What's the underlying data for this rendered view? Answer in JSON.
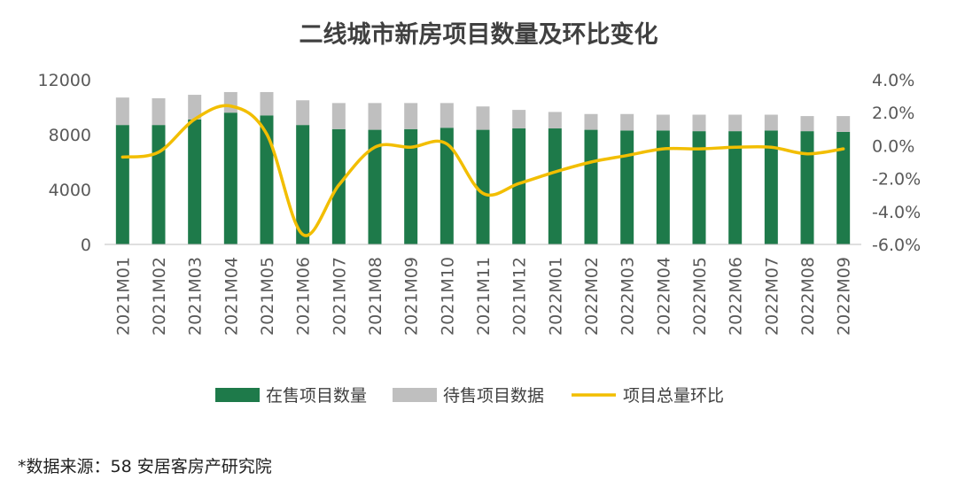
{
  "colors": {
    "on_sale": "#1e7a4a",
    "pending": "#bfbfbf",
    "mom_line": "#f2be00",
    "axis": "#bfbfbf"
  },
  "chart_data": {
    "type": "bar",
    "title": "二线城市新房项目数量及环比变化",
    "categories": [
      "2021M01",
      "2021M02",
      "2021M03",
      "2021M04",
      "2021M05",
      "2021M06",
      "2021M07",
      "2021M08",
      "2021M09",
      "2021M10",
      "2021M11",
      "2021M12",
      "2022M01",
      "2022M02",
      "2022M03",
      "2022M04",
      "2022M05",
      "2022M06",
      "2022M07",
      "2022M08",
      "2022M09"
    ],
    "series": [
      {
        "name": "在售项目数量",
        "type": "bar",
        "axis": "left",
        "values": [
          8700,
          8700,
          9100,
          9600,
          9400,
          8700,
          8400,
          8350,
          8400,
          8500,
          8350,
          8450,
          8450,
          8350,
          8300,
          8300,
          8250,
          8250,
          8300,
          8250,
          8200
        ]
      },
      {
        "name": "待售项目数据",
        "type": "bar",
        "axis": "left",
        "stacked": true,
        "values": [
          2000,
          1950,
          1800,
          1500,
          1700,
          1800,
          1900,
          1950,
          1900,
          1800,
          1700,
          1350,
          1200,
          1150,
          1200,
          1150,
          1200,
          1200,
          1150,
          1100,
          1150
        ]
      },
      {
        "name": "项目总量环比",
        "type": "line",
        "axis": "right",
        "smooth": true,
        "values": [
          -0.7,
          -0.4,
          1.6,
          2.4,
          0.7,
          -5.4,
          -2.4,
          -0.1,
          -0.1,
          0.1,
          -2.9,
          -2.3,
          -1.6,
          -1.0,
          -0.6,
          -0.2,
          -0.2,
          -0.1,
          -0.1,
          -0.5,
          -0.2
        ]
      }
    ],
    "y_left": {
      "range": [
        0,
        12000
      ],
      "ticks": [
        "0",
        "4000",
        "8000",
        "12000"
      ],
      "tick_values": [
        0,
        4000,
        8000,
        12000
      ]
    },
    "y_right": {
      "range": [
        -6.0,
        4.0
      ],
      "ticks": [
        "-6.0%",
        "-4.0%",
        "-2.0%",
        "0.0%",
        "2.0%",
        "4.0%"
      ],
      "tick_values": [
        -6,
        -4,
        -2,
        0,
        2,
        4
      ]
    },
    "legend_position": "bottom",
    "grid": false
  },
  "footer": {
    "source": "*数据来源：58 安居客房产研究院"
  }
}
